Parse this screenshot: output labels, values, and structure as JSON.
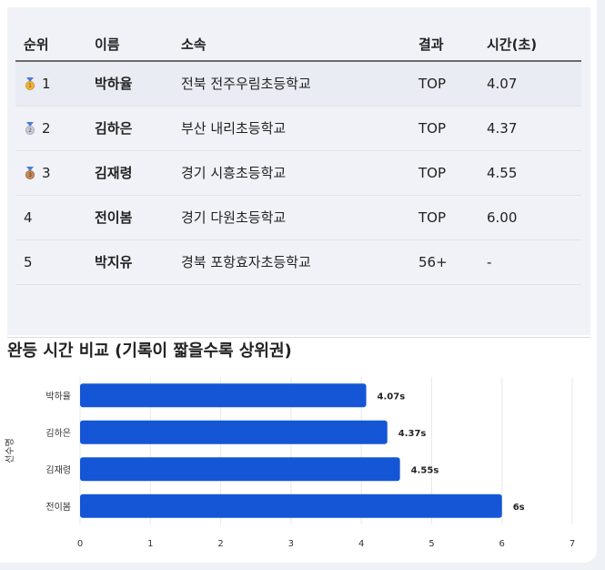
{
  "table": {
    "headers": {
      "rank": "순위",
      "name": "이름",
      "school": "소속",
      "result": "결과",
      "time": "시간(초)"
    },
    "rows": [
      {
        "rank": "1",
        "medal": "gold-medal-icon",
        "name": "박하율",
        "school": "전북 전주우림초등학교",
        "result": "TOP",
        "time": "4.07"
      },
      {
        "rank": "2",
        "medal": "silver-medal-icon",
        "name": "김하은",
        "school": "부산 내리초등학교",
        "result": "TOP",
        "time": "4.37"
      },
      {
        "rank": "3",
        "medal": "bronze-medal-icon",
        "name": "김재령",
        "school": "경기 시흥초등학교",
        "result": "TOP",
        "time": "4.55"
      },
      {
        "rank": "4",
        "medal": "",
        "name": "전이봄",
        "school": "경기 다원초등학교",
        "result": "TOP",
        "time": "6.00"
      },
      {
        "rank": "5",
        "medal": "",
        "name": "박지유",
        "school": "경북 포항효자초등학교",
        "result": "56+",
        "time": "-"
      }
    ]
  },
  "colors": {
    "bar": "#1456d6",
    "gold": "#f0b43c",
    "silver": "#b8bcc8",
    "bronze": "#c98a5a"
  },
  "chart_data": {
    "type": "bar",
    "orientation": "horizontal",
    "title": "완등 시간 비교 (기록이 짧을수록 상위권)",
    "ylabel": "선수명",
    "xlabel": "",
    "categories": [
      "박하율",
      "김하은",
      "김재령",
      "전이봄"
    ],
    "values": [
      4.07,
      4.37,
      4.55,
      6
    ],
    "value_labels": [
      "4.07s",
      "4.37s",
      "4.55s",
      "6s"
    ],
    "xlim": [
      0,
      7
    ],
    "xticks": [
      "0",
      "1",
      "2",
      "3",
      "4",
      "5",
      "6",
      "7"
    ],
    "grid": true
  }
}
